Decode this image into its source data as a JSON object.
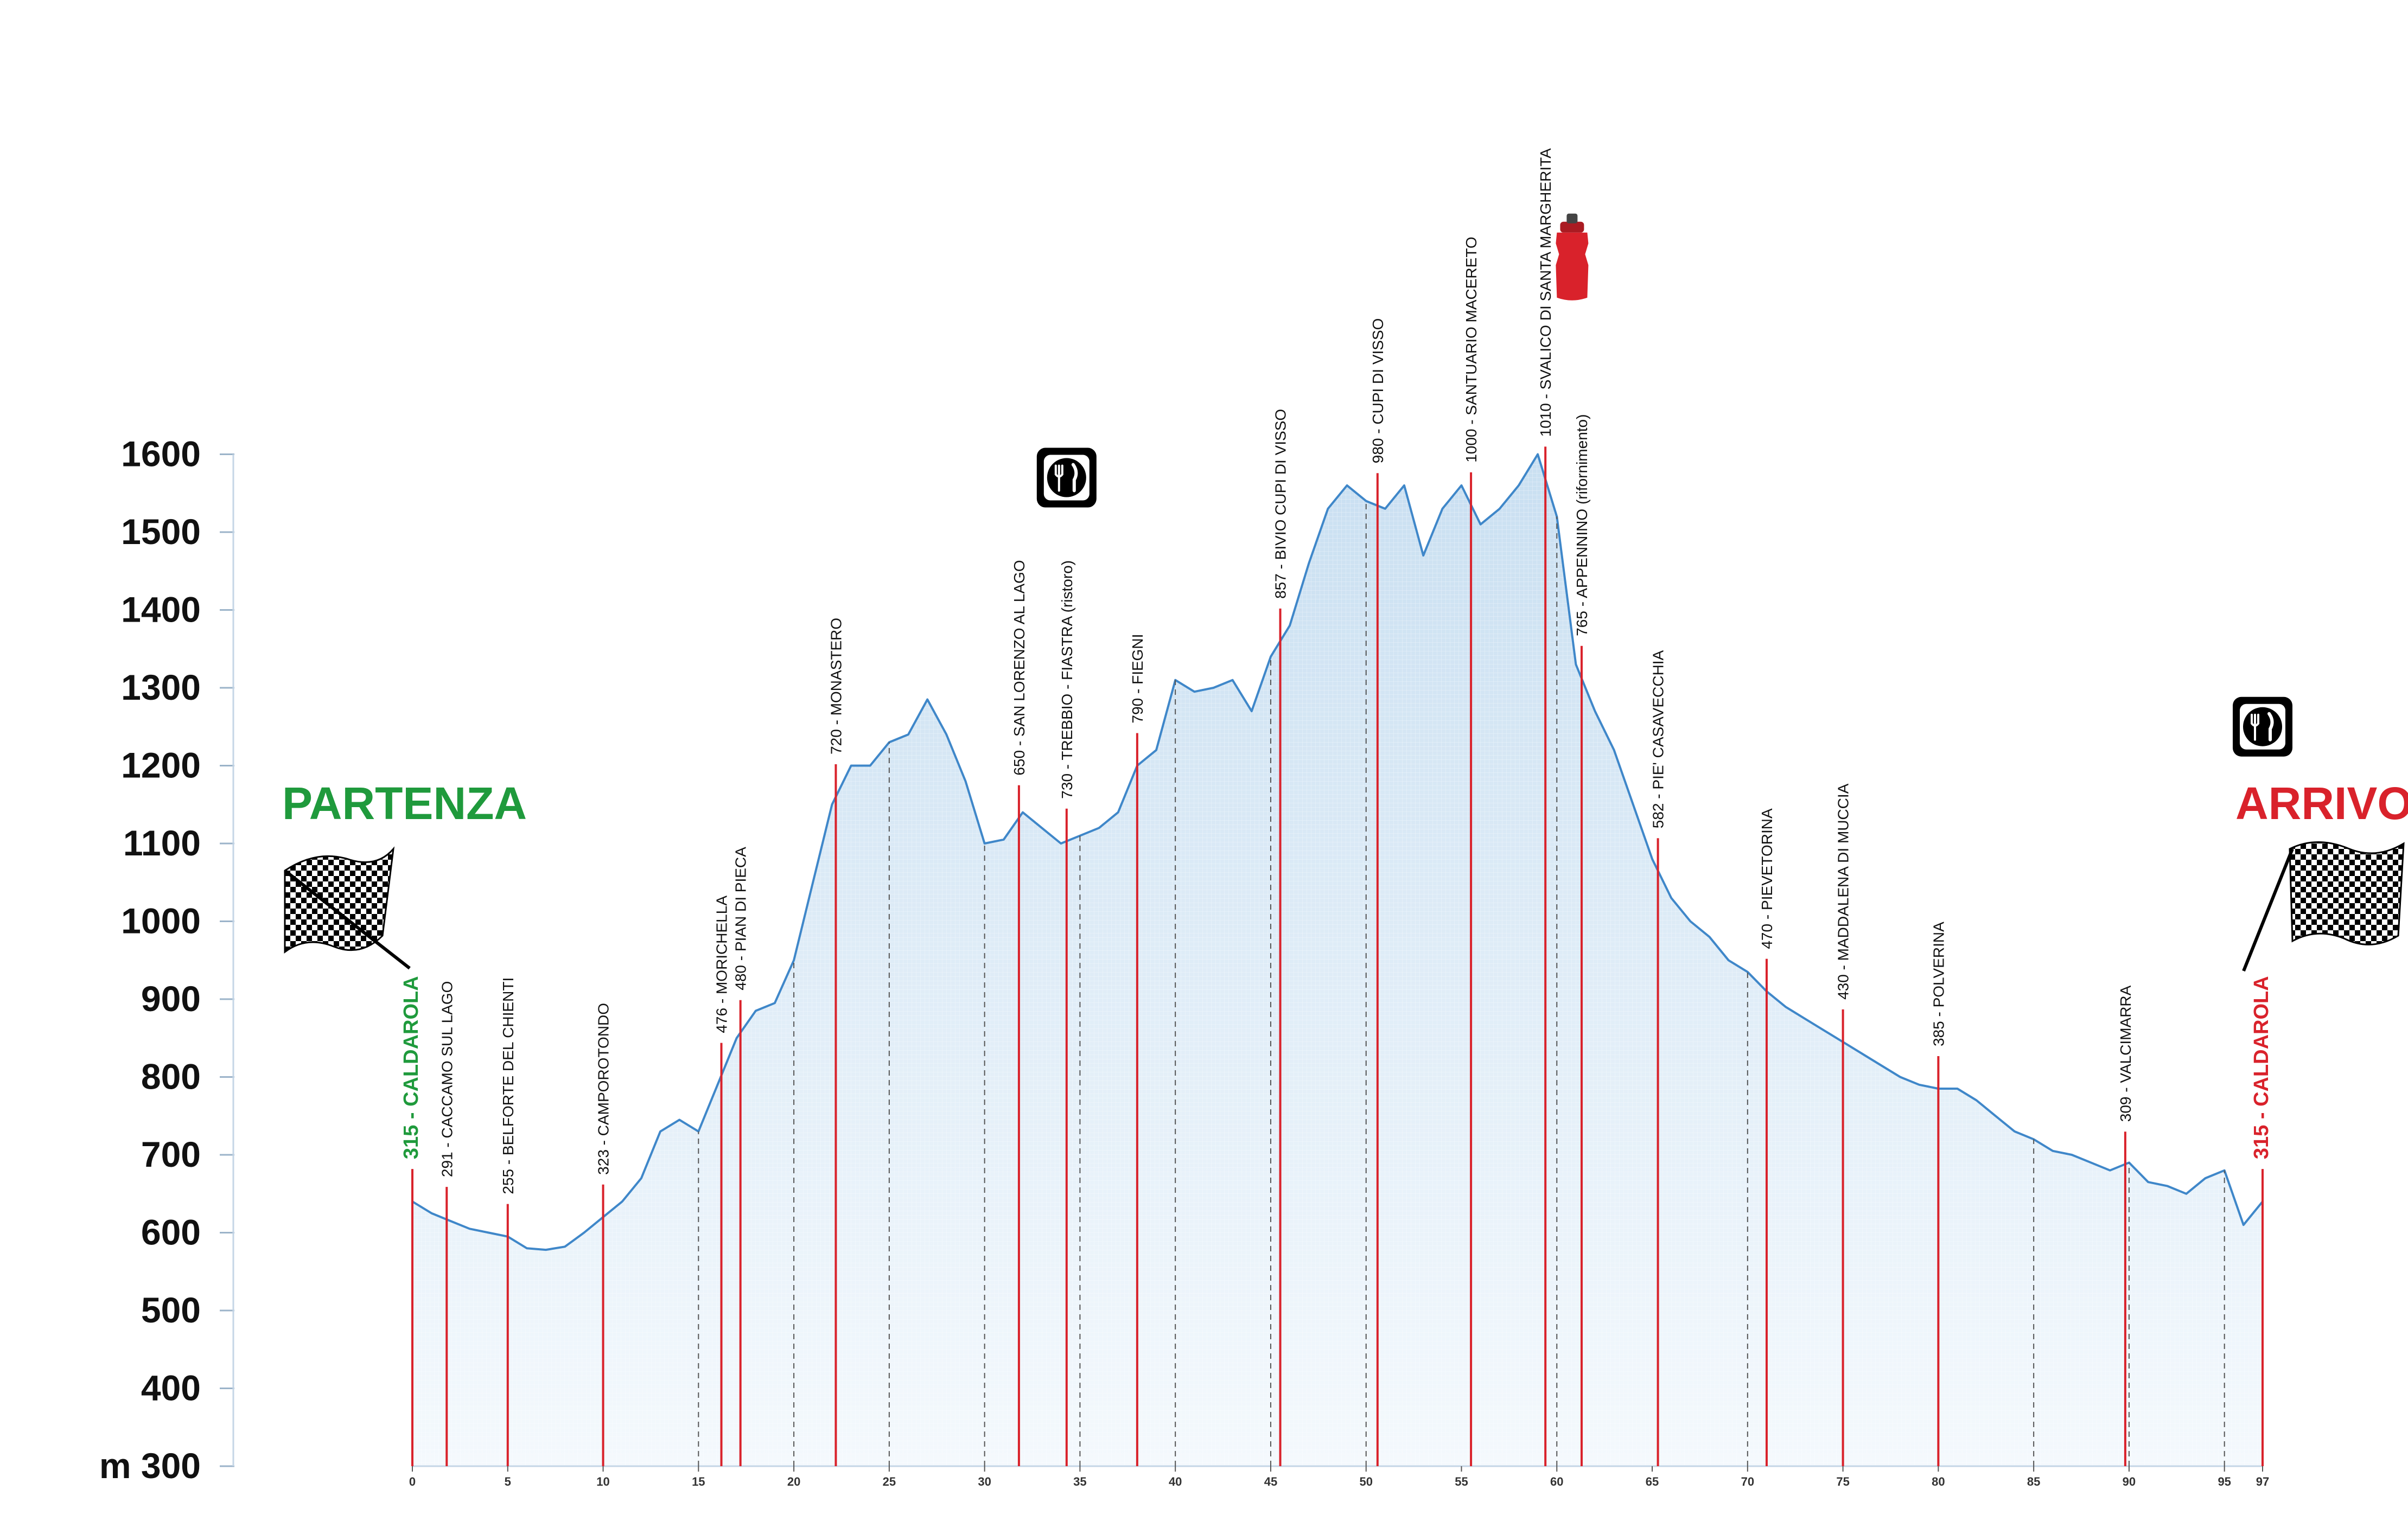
{
  "chart_data": {
    "type": "area",
    "title": "",
    "xlabel": "",
    "ylabel": "m",
    "y_unit_prefix": "m",
    "ylim": [
      300,
      1600
    ],
    "xlim": [
      0,
      97
    ],
    "y_ticks": [
      300,
      400,
      500,
      600,
      700,
      800,
      900,
      1000,
      1100,
      1200,
      1300,
      1400,
      1500,
      1600
    ],
    "y_tick_labels": [
      "m 300",
      "400",
      "500",
      "600",
      "700",
      "800",
      "900",
      "1000",
      "1100",
      "1200",
      "1300",
      "1400",
      "1500",
      "1600"
    ],
    "x_ticks": [
      0,
      5,
      10,
      15,
      20,
      25,
      30,
      35,
      40,
      45,
      50,
      55,
      60,
      65,
      70,
      75,
      80,
      85,
      90,
      95,
      97
    ],
    "x_tick_labels": [
      "0",
      "5",
      "10",
      "15",
      "20",
      "25",
      "30",
      "35",
      "40",
      "45",
      "50",
      "55",
      "60",
      "65",
      "70",
      "75",
      "80",
      "85",
      "90",
      "95",
      "97"
    ],
    "grid": true,
    "start_label": "PARTENZA",
    "end_label": "ARRIVO",
    "profile": {
      "x": [
        0,
        1,
        2,
        3,
        4,
        5,
        6,
        7,
        8,
        9,
        10,
        11,
        12,
        13,
        14,
        15,
        16,
        17,
        18,
        19,
        20,
        21,
        22,
        23,
        24,
        25,
        26,
        27,
        28,
        29,
        30,
        31,
        32,
        33,
        34,
        35,
        36,
        37,
        38,
        39,
        40,
        41,
        42,
        43,
        44,
        45,
        46,
        47,
        48,
        49,
        50,
        51,
        52,
        53,
        54,
        55,
        56,
        57,
        58,
        59,
        60,
        61,
        62,
        63,
        64,
        65,
        66,
        67,
        68,
        69,
        70,
        71,
        72,
        73,
        74,
        75,
        76,
        77,
        78,
        79,
        80,
        81,
        82,
        83,
        84,
        85,
        86,
        87,
        88,
        89,
        90,
        91,
        92,
        93,
        94,
        95,
        96,
        97
      ],
      "y": [
        640,
        625,
        615,
        605,
        600,
        595,
        580,
        578,
        582,
        600,
        620,
        640,
        670,
        730,
        745,
        730,
        790,
        850,
        885,
        895,
        950,
        1050,
        1150,
        1200,
        1200,
        1230,
        1240,
        1285,
        1240,
        1180,
        1100,
        1105,
        1140,
        1120,
        1100,
        1110,
        1120,
        1140,
        1200,
        1220,
        1310,
        1295,
        1300,
        1310,
        1270,
        1340,
        1380,
        1460,
        1530,
        1560,
        1540,
        1530,
        1560,
        1470,
        1530,
        1560,
        1510,
        1530,
        1560,
        1600,
        1520,
        1330,
        1270,
        1220,
        1150,
        1080,
        1030,
        1000,
        980,
        950,
        935,
        910,
        890,
        875,
        860,
        845,
        830,
        815,
        800,
        790,
        785,
        785,
        770,
        750,
        730,
        720,
        705,
        700,
        690,
        680,
        690,
        665,
        660,
        650,
        670,
        680,
        610,
        640
      ]
    },
    "waypoints": [
      {
        "km": 0,
        "label": "315 - CALDAROLA",
        "kind": "start"
      },
      {
        "km": 1.8,
        "label": "291 - CACCAMO SUL LAGO",
        "kind": "normal"
      },
      {
        "km": 5,
        "label": "255 - BELFORTE DEL CHIENTI",
        "kind": "normal"
      },
      {
        "km": 10,
        "label": "323 - CAMPOROTONDO",
        "kind": "normal"
      },
      {
        "km": 16.2,
        "label": "476 - MORICHELLA",
        "kind": "normal"
      },
      {
        "km": 17.2,
        "label": "480 - PIAN DI PIECA",
        "kind": "normal"
      },
      {
        "km": 22.2,
        "label": "720 - MONASTERO",
        "kind": "normal"
      },
      {
        "km": 31.8,
        "label": "650 - SAN LORENZO AL LAGO",
        "kind": "normal"
      },
      {
        "km": 34.3,
        "label": "730 - TREBBIO - FIASTRA (ristoro)",
        "kind": "normal"
      },
      {
        "km": 38,
        "label": "790 - FIEGNI",
        "kind": "normal"
      },
      {
        "km": 45.5,
        "label": "857 - BIVIO CUPI DI VISSO",
        "kind": "normal"
      },
      {
        "km": 50.6,
        "label": "980 - CUPI DI VISSO",
        "kind": "normal"
      },
      {
        "km": 55.5,
        "label": "1000 - SANTUARIO MACERETO",
        "kind": "normal"
      },
      {
        "km": 59.4,
        "label": "1010 - SVALICO DI SANTA MARGHERITA",
        "kind": "normal"
      },
      {
        "km": 61.3,
        "label": "765 - APPENNINO (rifornimento)",
        "kind": "normal"
      },
      {
        "km": 65.3,
        "label": "582 - PIE' CASAVECCHIA",
        "kind": "normal"
      },
      {
        "km": 71,
        "label": "470 - PIEVETORINA",
        "kind": "normal"
      },
      {
        "km": 75,
        "label": "430 - MADDALENA DI MUCCIA",
        "kind": "normal"
      },
      {
        "km": 80,
        "label": "385 - POLVERINA",
        "kind": "normal"
      },
      {
        "km": 89.8,
        "label": "309 - VALCIMARRA",
        "kind": "normal"
      },
      {
        "km": 97,
        "label": "315 - CALDAROLA",
        "kind": "end"
      }
    ],
    "grid_km_dashed": [
      15,
      20,
      25,
      30,
      35,
      40,
      45,
      50,
      60,
      70,
      85,
      90,
      95
    ],
    "icons": [
      {
        "name": "restaurant-icon",
        "km": 34.3,
        "elev_anchor": 1570
      },
      {
        "name": "bottle-icon",
        "km": 60.8,
        "elev_anchor": 1850
      },
      {
        "name": "restaurant-icon",
        "km": 97,
        "elev_anchor": 1250
      }
    ],
    "colors": {
      "profile_line": "#3f87c9",
      "fill_top": "#c9dff1",
      "fill_bottom": "#f4f9fd",
      "waypoint_line": "#d9222b",
      "dashed_line": "#555555",
      "start_color": "#1f9a3c",
      "end_color": "#d9222b"
    }
  }
}
